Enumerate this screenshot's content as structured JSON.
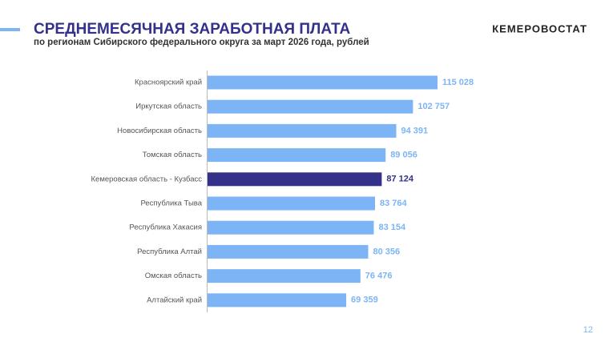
{
  "header": {
    "title": "СРЕДНЕМЕСЯЧНАЯ ЗАРАБОТНАЯ ПЛАТА",
    "subtitle": "по регионам Сибирского федерального округа за март 2026 года, рублей",
    "brand": "КЕМЕРОВОСТАТ"
  },
  "page_number": "12",
  "chart_data": {
    "type": "barh",
    "categories": [
      "Красноярский край",
      "Иркутская область",
      "Новосибирская область",
      "Томская область",
      "Кемеровская область - Кузбасс",
      "Республика Тыва",
      "Республика Хакасия",
      "Республика Алтай",
      "Омская область",
      "Алтайский край"
    ],
    "values": [
      115028,
      102757,
      94391,
      89056,
      87124,
      83764,
      83154,
      80356,
      76476,
      69359
    ],
    "value_labels": [
      "115 028",
      "102 757",
      "94 391",
      "89 056",
      "87 124",
      "83 764",
      "83 154",
      "80 356",
      "76 476",
      "69 359"
    ],
    "colors": [
      "#7db4f5",
      "#7db4f5",
      "#7db4f5",
      "#7db4f5",
      "#33318a",
      "#7db4f5",
      "#7db4f5",
      "#7db4f5",
      "#7db4f5",
      "#7db4f5"
    ]
  }
}
